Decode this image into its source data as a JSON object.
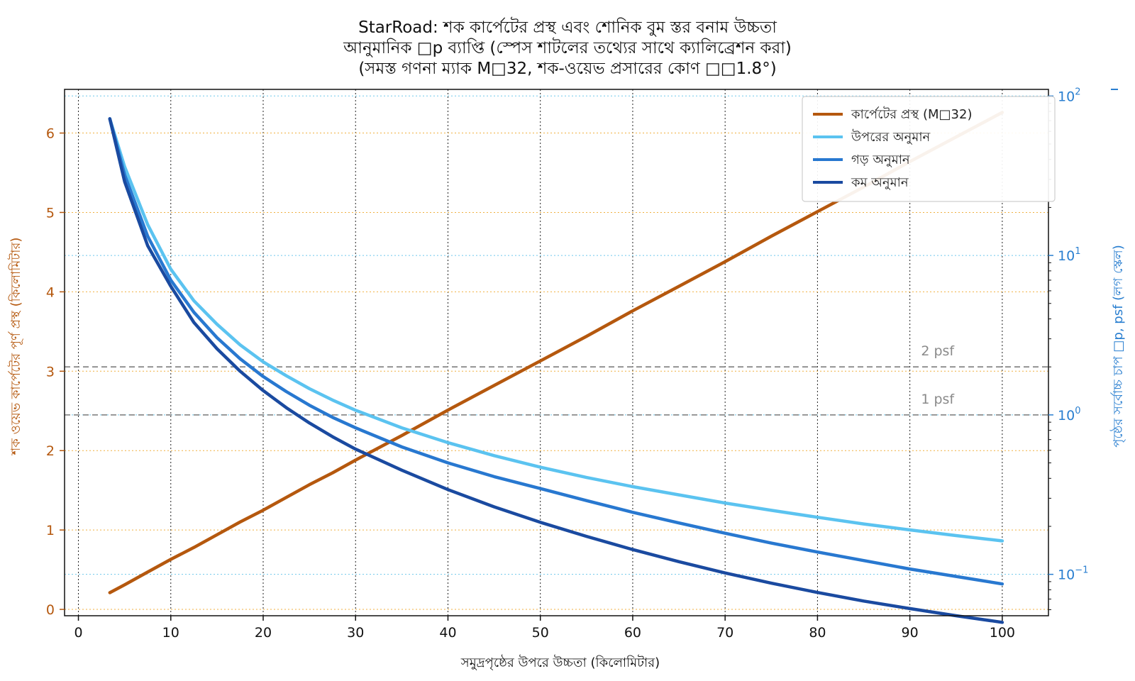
{
  "chart_data": {
    "type": "line",
    "title_lines": [
      "StarRoad: শক কার্পেটের প্রস্থ এবং শোনিক বুম স্তর বনাম উচ্চতা",
      "আনুমানিক □p ব্যাপ্তি (স্পেস শাটলের তথ্যের সাথে ক্যালিব্রেশন করা)",
      "(সমস্ত গণনা ম্যাক M□32, শক-ওয়েভ প্রসারের কোণ □□1.8°)"
    ],
    "xlabel": "সমুদ্রপৃষ্ঠের উপরে উচ্চতা (কিলোমিটার)",
    "ylabel_left": "শক ওয়েভ কার্পেটের পূর্ণ প্রস্থ (কিলোমিটার)",
    "ylabel_right": "পৃষ্ঠের সর্বোচ্চ চাপ □p, psf (লগ স্কেল)",
    "xlim": [
      -1.5,
      105
    ],
    "ylim_left": [
      -0.08,
      6.55
    ],
    "ylim_right": [
      0.055,
      110
    ],
    "yscale_right": "log",
    "x_ticks": [
      0,
      10,
      20,
      30,
      40,
      50,
      60,
      70,
      80,
      90,
      100
    ],
    "y_ticks_left": [
      0,
      1,
      2,
      3,
      4,
      5,
      6
    ],
    "y_ticks_right": [
      {
        "value": 0.1,
        "base": "10",
        "exp": "−1"
      },
      {
        "value": 1,
        "base": "10",
        "exp": "0"
      },
      {
        "value": 10,
        "base": "10",
        "exp": "1"
      },
      {
        "value": 100,
        "base": "10",
        "exp": "2"
      }
    ],
    "grid": true,
    "legend_position": "top-right",
    "colors": {
      "carpet": "#b5580e",
      "upper": "#5bc3f0",
      "mid": "#2878d0",
      "low": "#1a4aa0",
      "left_axis": "#b5580e",
      "right_axis": "#2a7fd0",
      "reference": "#8c8c8c"
    },
    "x": [
      3.4,
      5,
      7.5,
      10,
      12.5,
      15,
      17.5,
      20,
      22.5,
      25,
      27.5,
      30,
      35,
      40,
      45,
      50,
      55,
      60,
      65,
      70,
      75,
      80,
      85,
      90,
      95,
      100
    ],
    "series": [
      {
        "name": "কার্পেটের প্রস্থ (M□32)",
        "axis": "left",
        "color": "#b5580e",
        "values": [
          0.21,
          0.31,
          0.47,
          0.63,
          0.78,
          0.94,
          1.1,
          1.25,
          1.41,
          1.57,
          1.72,
          1.88,
          2.19,
          2.51,
          2.82,
          3.13,
          3.44,
          3.76,
          4.07,
          4.38,
          4.7,
          5.01,
          5.32,
          5.64,
          5.95,
          6.26
        ]
      },
      {
        "name": "উপরের অনুমান",
        "axis": "right",
        "color": "#5bc3f0",
        "values": [
          72,
          36,
          15.6,
          8.2,
          5.2,
          3.7,
          2.75,
          2.15,
          1.76,
          1.46,
          1.24,
          1.07,
          0.83,
          0.67,
          0.555,
          0.47,
          0.405,
          0.355,
          0.315,
          0.28,
          0.252,
          0.228,
          0.207,
          0.19,
          0.175,
          0.162
        ]
      },
      {
        "name": "গড় অনুমান",
        "axis": "right",
        "color": "#2878d0",
        "values": [
          72,
          32,
          13.2,
          7,
          4.4,
          3.05,
          2.25,
          1.74,
          1.4,
          1.15,
          0.965,
          0.83,
          0.63,
          0.5,
          0.41,
          0.345,
          0.29,
          0.245,
          0.21,
          0.181,
          0.157,
          0.138,
          0.122,
          0.108,
          0.097,
          0.087
        ]
      },
      {
        "name": "কম অনুমান",
        "axis": "right",
        "color": "#1a4aa0",
        "values": [
          72,
          29,
          11.5,
          6.4,
          3.8,
          2.6,
          1.88,
          1.42,
          1.11,
          0.89,
          0.73,
          0.61,
          0.45,
          0.34,
          0.265,
          0.212,
          0.173,
          0.143,
          0.12,
          0.102,
          0.088,
          0.077,
          0.068,
          0.061,
          0.055,
          0.05
        ]
      }
    ],
    "reference_lines": [
      {
        "value": 2,
        "label": "2 psf"
      },
      {
        "value": 1,
        "label": "1 psf"
      }
    ]
  }
}
